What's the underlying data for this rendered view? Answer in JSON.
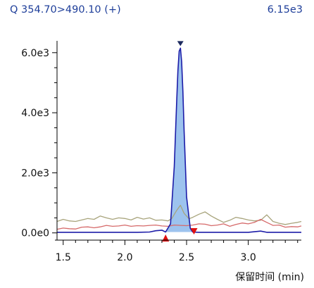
{
  "header": {
    "title": "Q 354.70>490.10 (+)",
    "max_intensity": "6.15e3"
  },
  "chart_data": {
    "type": "line",
    "title": "Q 354.70>490.10 (+)",
    "max_label": "6.15e3",
    "xlabel": "保留时间 (min)",
    "ylabel": "",
    "xlim": [
      1.45,
      3.43
    ],
    "ylim": [
      -100,
      6300
    ],
    "x_ticks": [
      1.5,
      2.0,
      2.5,
      3.0
    ],
    "x_tick_labels": [
      "1.5",
      "2.0",
      "2.5",
      "3.0"
    ],
    "y_ticks": [
      0,
      2000,
      4000,
      6000
    ],
    "y_tick_labels": [
      "0.0e0",
      "2.0e3",
      "4.0e3",
      "6.0e3"
    ],
    "grid": false,
    "colors": {
      "header": "#1f3f9a",
      "main_trace": "#1c1ca8",
      "peak_fill": "#9dc3ee",
      "trace_red": "#d66a6a",
      "trace_olive": "#a8a47c",
      "marker_apex": "#1c2a5e",
      "marker_boundary": "#e01010",
      "axis": "#000000"
    },
    "series": [
      {
        "color": "#1c1ca8",
        "x": [
          1.45,
          1.6,
          1.8,
          2.0,
          2.1,
          2.2,
          2.25,
          2.3,
          2.33,
          2.37,
          2.4,
          2.42,
          2.43,
          2.44,
          2.45,
          2.46,
          2.47,
          2.48,
          2.5,
          2.53,
          2.55,
          2.6,
          2.7,
          2.8,
          3.0,
          3.1,
          3.15,
          3.3,
          3.43
        ],
        "y": [
          20,
          20,
          20,
          20,
          20,
          30,
          70,
          90,
          30,
          300,
          2200,
          4400,
          5400,
          6050,
          6150,
          5700,
          4700,
          3400,
          1200,
          150,
          30,
          20,
          20,
          20,
          20,
          60,
          20,
          20,
          20
        ]
      },
      {
        "color": "#d66a6a",
        "x": [
          1.45,
          1.5,
          1.55,
          1.6,
          1.65,
          1.7,
          1.75,
          1.8,
          1.85,
          1.9,
          1.95,
          2.0,
          2.05,
          2.1,
          2.15,
          2.2,
          2.25,
          2.3,
          2.35,
          2.4,
          2.45,
          2.5,
          2.55,
          2.6,
          2.65,
          2.7,
          2.75,
          2.8,
          2.85,
          2.9,
          2.95,
          3.0,
          3.05,
          3.1,
          3.15,
          3.2,
          3.25,
          3.3,
          3.35,
          3.4,
          3.43
        ],
        "y": [
          120,
          160,
          140,
          130,
          190,
          200,
          170,
          200,
          250,
          220,
          230,
          260,
          220,
          240,
          230,
          250,
          260,
          230,
          220,
          260,
          250,
          240,
          260,
          300,
          290,
          240,
          260,
          300,
          220,
          280,
          330,
          300,
          350,
          450,
          350,
          250,
          260,
          190,
          210,
          200,
          230
        ]
      },
      {
        "color": "#a8a47c",
        "x": [
          1.45,
          1.5,
          1.55,
          1.6,
          1.65,
          1.7,
          1.75,
          1.8,
          1.85,
          1.9,
          1.95,
          2.0,
          2.05,
          2.1,
          2.15,
          2.2,
          2.25,
          2.3,
          2.35,
          2.38,
          2.42,
          2.45,
          2.48,
          2.52,
          2.55,
          2.6,
          2.65,
          2.7,
          2.75,
          2.8,
          2.85,
          2.9,
          2.95,
          3.0,
          3.05,
          3.1,
          3.15,
          3.2,
          3.25,
          3.3,
          3.35,
          3.4,
          3.43
        ],
        "y": [
          380,
          450,
          400,
          380,
          430,
          480,
          450,
          560,
          500,
          450,
          500,
          480,
          430,
          520,
          460,
          500,
          420,
          430,
          400,
          480,
          750,
          920,
          650,
          470,
          520,
          620,
          700,
          560,
          450,
          350,
          420,
          520,
          480,
          430,
          400,
          420,
          600,
          380,
          320,
          280,
          320,
          350,
          380
        ]
      }
    ],
    "markers": [
      {
        "type": "apex",
        "x": 2.45,
        "y": 6150,
        "color": "#1c2a5e"
      },
      {
        "type": "start",
        "x": 2.33,
        "y": 30,
        "color": "#e01010"
      },
      {
        "type": "end",
        "x": 2.56,
        "y": 30,
        "color": "#e01010"
      }
    ],
    "peak_fill": {
      "x_start": 2.33,
      "x_end": 2.56,
      "color": "#9dc3ee"
    }
  }
}
